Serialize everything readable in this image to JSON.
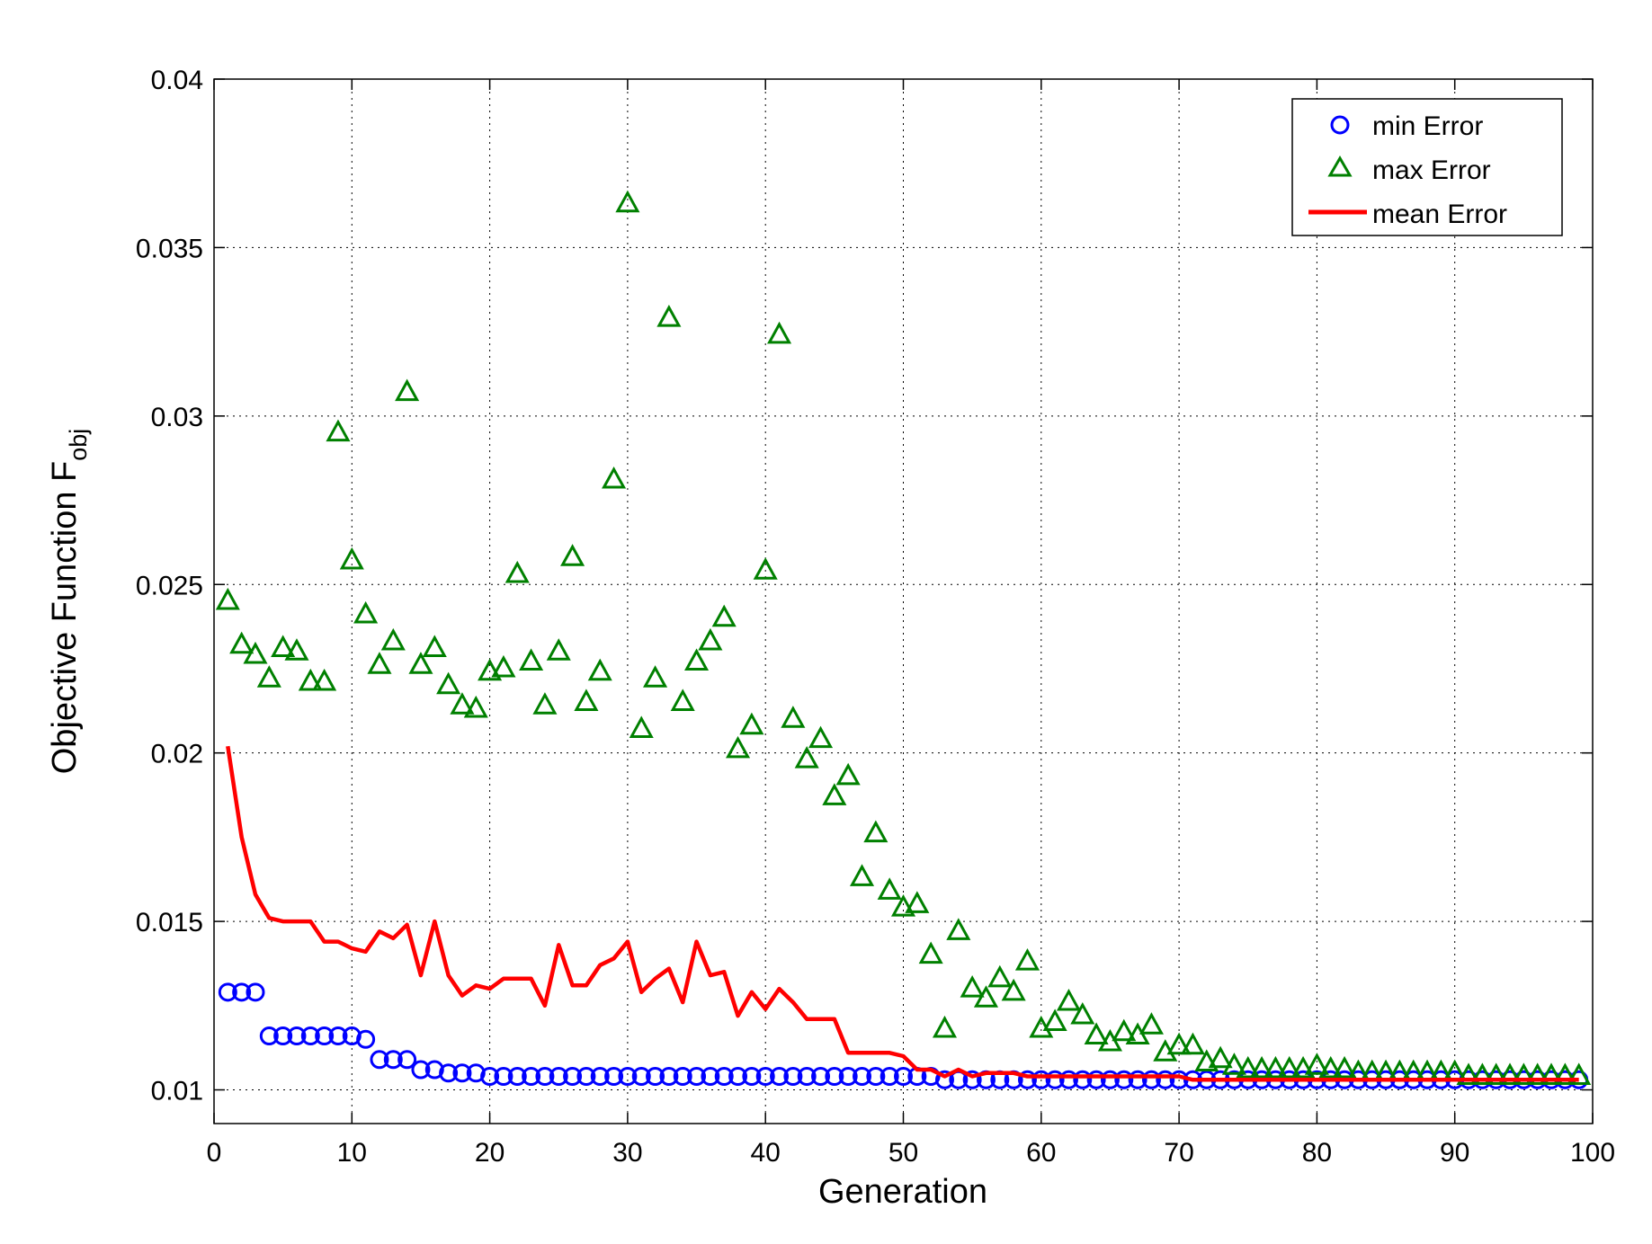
{
  "chart_data": {
    "type": "scatter",
    "xlabel": "Generation",
    "ylabel": "Objective Function F",
    "ylabel_subscript": "obj",
    "xlim": [
      0,
      100
    ],
    "ylim": [
      0.009,
      0.04
    ],
    "xticks": [
      0,
      10,
      20,
      30,
      40,
      50,
      60,
      70,
      80,
      90,
      100
    ],
    "xtick_labels": [
      "0",
      "10",
      "20",
      "30",
      "40",
      "50",
      "60",
      "70",
      "80",
      "90",
      "100"
    ],
    "yticks": [
      0.01,
      0.015,
      0.02,
      0.025,
      0.03,
      0.035,
      0.04
    ],
    "ytick_labels": [
      "0.01",
      "0.015",
      "0.02",
      "0.025",
      "0.03",
      "0.035",
      "0.04"
    ],
    "grid": true,
    "legend_position": "top-right",
    "x": [
      1,
      2,
      3,
      4,
      5,
      6,
      7,
      8,
      9,
      10,
      11,
      12,
      13,
      14,
      15,
      16,
      17,
      18,
      19,
      20,
      21,
      22,
      23,
      24,
      25,
      26,
      27,
      28,
      29,
      30,
      31,
      32,
      33,
      34,
      35,
      36,
      37,
      38,
      39,
      40,
      41,
      42,
      43,
      44,
      45,
      46,
      47,
      48,
      49,
      50,
      51,
      52,
      53,
      54,
      55,
      56,
      57,
      58,
      59,
      60,
      61,
      62,
      63,
      64,
      65,
      66,
      67,
      68,
      69,
      70,
      71,
      72,
      73,
      74,
      75,
      76,
      77,
      78,
      79,
      80,
      81,
      82,
      83,
      84,
      85,
      86,
      87,
      88,
      89,
      90,
      91,
      92,
      93,
      94,
      95,
      96,
      97,
      98,
      99
    ],
    "series": [
      {
        "name": "min Error",
        "kind": "marker",
        "marker": "circle",
        "color": "#0000ff",
        "values": [
          0.0129,
          0.0129,
          0.0129,
          0.0116,
          0.0116,
          0.0116,
          0.0116,
          0.0116,
          0.0116,
          0.0116,
          0.0115,
          0.0109,
          0.0109,
          0.0109,
          0.0106,
          0.0106,
          0.0105,
          0.0105,
          0.0105,
          0.0104,
          0.0104,
          0.0104,
          0.0104,
          0.0104,
          0.0104,
          0.0104,
          0.0104,
          0.0104,
          0.0104,
          0.0104,
          0.0104,
          0.0104,
          0.0104,
          0.0104,
          0.0104,
          0.0104,
          0.0104,
          0.0104,
          0.0104,
          0.0104,
          0.0104,
          0.0104,
          0.0104,
          0.0104,
          0.0104,
          0.0104,
          0.0104,
          0.0104,
          0.0104,
          0.0104,
          0.0104,
          0.0104,
          0.0103,
          0.0103,
          0.0103,
          0.0103,
          0.0103,
          0.0103,
          0.0103,
          0.0103,
          0.0103,
          0.0103,
          0.0103,
          0.0103,
          0.0103,
          0.0103,
          0.0103,
          0.0103,
          0.0103,
          0.0103,
          0.0103,
          0.0103,
          0.0103,
          0.0103,
          0.0103,
          0.0103,
          0.0103,
          0.0103,
          0.0103,
          0.0103,
          0.0103,
          0.0103,
          0.0103,
          0.0103,
          0.0103,
          0.0103,
          0.0103,
          0.0103,
          0.0103,
          0.0103,
          0.0103,
          0.0103,
          0.0103,
          0.0103,
          0.0103,
          0.0103,
          0.0103,
          0.0103,
          0.0103
        ]
      },
      {
        "name": "max Error",
        "kind": "marker",
        "marker": "triangle",
        "color": "#008000",
        "values": [
          0.0245,
          0.0232,
          0.0229,
          0.0222,
          0.0231,
          0.023,
          0.0221,
          0.0221,
          0.0295,
          0.0257,
          0.0241,
          0.0226,
          0.0233,
          0.0307,
          0.0226,
          0.0231,
          0.022,
          0.0214,
          0.0213,
          0.0224,
          0.0225,
          0.0253,
          0.0227,
          0.0214,
          0.023,
          0.0258,
          0.0215,
          0.0224,
          0.0281,
          0.0363,
          0.0207,
          0.0222,
          0.0329,
          0.0215,
          0.0227,
          0.0233,
          0.024,
          0.0201,
          0.0208,
          0.0254,
          0.0324,
          0.021,
          0.0198,
          0.0204,
          0.0187,
          0.0193,
          0.0163,
          0.0176,
          0.0159,
          0.0154,
          0.0155,
          0.014,
          0.0118,
          0.0147,
          0.013,
          0.0127,
          0.0133,
          0.0129,
          0.0138,
          0.0118,
          0.012,
          0.0126,
          0.0122,
          0.0116,
          0.0114,
          0.0117,
          0.0116,
          0.0119,
          0.0111,
          0.0113,
          0.0113,
          0.0108,
          0.0109,
          0.0107,
          0.0106,
          0.0106,
          0.0106,
          0.0106,
          0.0106,
          0.0107,
          0.0106,
          0.0106,
          0.0105,
          0.0105,
          0.0105,
          0.0105,
          0.0105,
          0.0105,
          0.0105,
          0.0105,
          0.0104,
          0.0104,
          0.0104,
          0.0104,
          0.0104,
          0.0104,
          0.0104,
          0.0104,
          0.0104
        ]
      },
      {
        "name": "mean Error",
        "kind": "line",
        "color": "#ff0000",
        "values": [
          0.0202,
          0.0175,
          0.0158,
          0.0151,
          0.015,
          0.015,
          0.015,
          0.0144,
          0.0144,
          0.0142,
          0.0141,
          0.0147,
          0.0145,
          0.0149,
          0.0134,
          0.015,
          0.0134,
          0.0128,
          0.0131,
          0.013,
          0.0133,
          0.0133,
          0.0133,
          0.0125,
          0.0143,
          0.0131,
          0.0131,
          0.0137,
          0.0139,
          0.0144,
          0.0129,
          0.0133,
          0.0136,
          0.0126,
          0.0144,
          0.0134,
          0.0135,
          0.0122,
          0.0129,
          0.0124,
          0.013,
          0.0126,
          0.0121,
          0.0121,
          0.0121,
          0.0111,
          0.0111,
          0.0111,
          0.0111,
          0.011,
          0.0106,
          0.0106,
          0.0104,
          0.0106,
          0.0104,
          0.0105,
          0.0105,
          0.0105,
          0.0104,
          0.0104,
          0.0104,
          0.0104,
          0.0104,
          0.0104,
          0.0104,
          0.0104,
          0.0104,
          0.0104,
          0.0104,
          0.0104,
          0.0103,
          0.0103,
          0.0103,
          0.0103,
          0.0103,
          0.0103,
          0.0103,
          0.0103,
          0.0103,
          0.0103,
          0.0103,
          0.0103,
          0.0103,
          0.0103,
          0.0103,
          0.0103,
          0.0103,
          0.0103,
          0.0103,
          0.0103,
          0.0103,
          0.0103,
          0.0103,
          0.0103,
          0.0103,
          0.0103,
          0.0103,
          0.0103,
          0.0103
        ]
      }
    ]
  }
}
